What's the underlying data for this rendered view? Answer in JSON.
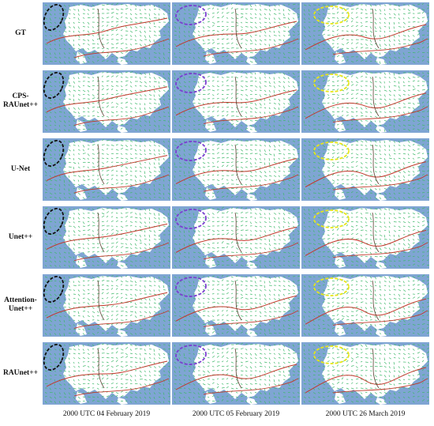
{
  "figure": {
    "rows": [
      {
        "label_lines": [
          "GT"
        ]
      },
      {
        "label_lines": [
          "CPS-",
          "RAUnet++"
        ]
      },
      {
        "label_lines": [
          "U-Net"
        ]
      },
      {
        "label_lines": [
          "Unet++"
        ]
      },
      {
        "label_lines": [
          "Attention-",
          "Unet++"
        ]
      },
      {
        "label_lines": [
          "RAUnet++"
        ]
      }
    ],
    "columns": [
      {
        "caption": "2000 UTC 04 February 2019",
        "highlight_color": "#111111"
      },
      {
        "caption": "2000 UTC 05 February 2019",
        "highlight_color": "#7a3fd0"
      },
      {
        "caption": "2000 UTC 26 March 2019",
        "highlight_color": "#e6e619"
      }
    ],
    "map_colors": {
      "ocean": "#7fa5d3",
      "land": "#ffffff",
      "wind_vectors": "#3fb96b",
      "jet_axis": "#c0392b",
      "trough_line": "#5a4030"
    }
  }
}
